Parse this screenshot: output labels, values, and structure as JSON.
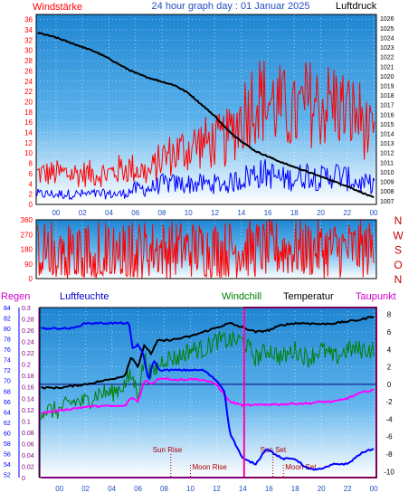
{
  "header": {
    "left_label": "Windstärke",
    "title": "24 hour graph day : 01 Januar 2025",
    "right_label": "Luftdruck"
  },
  "x_ticks": [
    "00",
    "02",
    "04",
    "06",
    "08",
    "10",
    "12",
    "14",
    "16",
    "18",
    "20",
    "22",
    "00"
  ],
  "wind_axis_ticks": [
    "0",
    "2",
    "4",
    "6",
    "8",
    "10",
    "12",
    "14",
    "16",
    "18",
    "20",
    "22",
    "24",
    "26",
    "28",
    "30",
    "32",
    "34",
    "36"
  ],
  "pressure_axis_ticks": [
    "1007",
    "1008",
    "1009",
    "1010",
    "1011",
    "1012",
    "1013",
    "1014",
    "1015",
    "1016",
    "1017",
    "1018",
    "1019",
    "1020",
    "1021",
    "1022",
    "1023",
    "1024",
    "1025",
    "1026"
  ],
  "direction_axis_ticks": [
    "0",
    "90",
    "180",
    "270",
    "360"
  ],
  "direction_labels": [
    "N",
    "W",
    "S",
    "O",
    "N"
  ],
  "bottom_headers": {
    "regen": "Regen",
    "luftfeuchte": "Luftfeuchte",
    "windchill": "Windchill",
    "temperatur": "Temperatur",
    "taupunkt": "Taupunkt"
  },
  "rain_axis_ticks": [
    "0",
    "0.02",
    "0.04",
    "0.06",
    "0.08",
    "0.1",
    "0.12",
    "0.14",
    "0.16",
    "0.18",
    "0.2",
    "0.22",
    "0.24",
    "0.26",
    "0.28",
    "0.3"
  ],
  "humidity_axis_ticks": [
    "52",
    "54",
    "56",
    "58",
    "60",
    "62",
    "64",
    "66",
    "68",
    "70",
    "72",
    "74",
    "76",
    "78",
    "80",
    "82",
    "84"
  ],
  "temperature_axis_ticks": [
    "-10",
    "-8",
    "-6",
    "-4",
    "-2",
    "0",
    "2",
    "4",
    "6",
    "8"
  ],
  "astro": {
    "sun_rise": "Sun Rise",
    "sun_set": "Sun Set",
    "moon_rise": "Moon Rise",
    "moon_set": "Moon Set"
  },
  "colors": {
    "wind_gust": "#ff0000",
    "wind_avg": "#0000ff",
    "pressure": "#000000",
    "direction": "#ff0000",
    "humidity": "#0000ff",
    "temperature": "#000000",
    "windchill": "#008000",
    "dewpoint": "#ff00ff",
    "rain": "#ff00ff",
    "astro": "#aa0000",
    "axis_wind": "#ff0000",
    "axis_pressure": "#000000",
    "axis_direction": "#ff0000",
    "axis_rain": "#800080",
    "axis_humidity": "#0000ff",
    "axis_temp": "#000000"
  },
  "chart_data": [
    {
      "type": "line",
      "x_unit": "hour",
      "xlim": [
        -1.5,
        24.2
      ],
      "y_left": {
        "ylim": [
          0,
          37
        ]
      },
      "y_right": {
        "ylim": [
          1006.6,
          1026.4
        ]
      },
      "series": [
        {
          "axis": "left",
          "x": [
            0,
            1,
            2,
            3,
            4,
            5,
            6,
            7,
            8,
            9,
            10,
            11,
            12,
            13,
            14,
            15,
            16,
            17,
            18,
            19,
            20,
            21,
            22,
            23,
            24
          ],
          "values": [
            6,
            6,
            6,
            6,
            6,
            7,
            7,
            6,
            9,
            10,
            11,
            12,
            12,
            13,
            17,
            21,
            20,
            19,
            17,
            20,
            19,
            20,
            18,
            17,
            12
          ]
        },
        {
          "axis": "left",
          "x": [
            0,
            1,
            2,
            3,
            4,
            5,
            6,
            7,
            8,
            9,
            10,
            11,
            12,
            13,
            14,
            15,
            16,
            17,
            18,
            19,
            20,
            21,
            22,
            23,
            24
          ],
          "values": [
            2,
            2,
            2,
            2,
            2,
            2,
            3,
            3,
            4,
            4,
            4,
            4,
            4,
            4,
            5,
            6,
            6,
            5,
            5,
            6,
            5,
            6,
            5,
            4,
            4
          ]
        },
        {
          "axis": "right",
          "x": [
            -1.4,
            0,
            1,
            2,
            3,
            4,
            5,
            6,
            7,
            8,
            9,
            10,
            11,
            12,
            13,
            14,
            15,
            16,
            17,
            18,
            19,
            20,
            21,
            22,
            23,
            24
          ],
          "values": [
            1024.5,
            1024.0,
            1023.5,
            1023.0,
            1022.5,
            1021.8,
            1021.0,
            1020.3,
            1019.8,
            1019.4,
            1019.0,
            1018.2,
            1017.0,
            1015.8,
            1014.3,
            1013.2,
            1012.2,
            1011.6,
            1011.0,
            1010.5,
            1010.0,
            1009.5,
            1009.0,
            1008.5,
            1007.9,
            1007.3
          ]
        }
      ]
    },
    {
      "type": "line",
      "x_unit": "hour",
      "xlim": [
        -1.5,
        24.2
      ],
      "ylim": [
        0,
        360
      ],
      "series": [
        {
          "x": [
            0,
            1,
            2,
            3,
            4,
            5,
            6,
            7,
            8,
            9,
            10,
            11,
            12,
            13,
            14,
            15,
            16,
            17,
            18,
            19,
            20,
            21,
            22,
            23,
            24
          ],
          "values": [
            60,
            300,
            120,
            310,
            90,
            280,
            150,
            320,
            200,
            340,
            180,
            300,
            220,
            330,
            190,
            310,
            210,
            340,
            230,
            300,
            200,
            320,
            250,
            330,
            280
          ]
        }
      ]
    },
    {
      "type": "line",
      "x_unit": "hour",
      "xlim": [
        -1.5,
        24.2
      ],
      "y_humidity": {
        "ylim": [
          51.4,
          84
        ]
      },
      "y_temperature": {
        "ylim": [
          -10.7,
          8.8
        ]
      },
      "y_rain": {
        "ylim": [
          0,
          0.3
        ]
      },
      "astro_hours": {
        "sun_rise": 8.5,
        "sun_set": 16.3,
        "moon_rise": 10.0,
        "moon_set": 17.1
      },
      "highlight_range": [
        14.1,
        24.2
      ],
      "series": [
        {
          "axis": "humidity",
          "x": [
            -1.4,
            0,
            1,
            2,
            3,
            4,
            5,
            5.3,
            5.6,
            6,
            6.4,
            6.8,
            7.2,
            7.6,
            8,
            9,
            10,
            11,
            12,
            12.6,
            13,
            14,
            15,
            15.8,
            16.4,
            17,
            18,
            18.5,
            19,
            20,
            21,
            22,
            23,
            24
          ],
          "values": [
            80,
            80,
            80,
            81,
            81,
            81,
            81,
            81,
            76,
            77,
            75,
            70,
            74,
            72,
            72,
            72,
            72,
            72,
            70,
            68,
            60,
            55,
            54,
            57,
            56,
            55,
            55,
            54,
            53,
            53,
            54,
            54,
            56,
            57
          ]
        },
        {
          "axis": "temperature",
          "x": [
            -1.4,
            0,
            1,
            2,
            3,
            4,
            5,
            5.5,
            6,
            6.5,
            7,
            7.5,
            8,
            9,
            10,
            11,
            12,
            13,
            14,
            15,
            16,
            17,
            18,
            19,
            20,
            21,
            22,
            23,
            24
          ],
          "values": [
            -0.4,
            -0.4,
            -0.2,
            0,
            0.3,
            0.6,
            1.0,
            3.2,
            2.0,
            4.5,
            3.5,
            5.0,
            5.0,
            5.2,
            5.5,
            6.0,
            6.5,
            7.0,
            6.5,
            6.0,
            6.2,
            6.8,
            7.0,
            7.0,
            6.9,
            7.0,
            7.2,
            7.4,
            7.8
          ]
        },
        {
          "axis": "temperature",
          "x": [
            -1.4,
            0,
            1,
            2,
            3,
            4,
            5,
            5.5,
            6,
            6.5,
            7,
            7.5,
            8,
            9,
            10,
            11,
            12,
            13,
            14,
            15,
            16,
            17,
            18,
            19,
            20,
            21,
            22,
            23,
            24
          ],
          "values": [
            -3,
            -3,
            -2,
            -2,
            -1,
            -1,
            0,
            1,
            -1,
            3,
            1,
            2,
            3,
            3,
            4,
            4,
            5,
            5,
            5,
            3,
            4,
            3,
            4,
            3,
            4,
            3,
            4,
            4,
            4
          ]
        },
        {
          "axis": "temperature",
          "x": [
            -1.4,
            0,
            1,
            2,
            3,
            4,
            5,
            5.5,
            6,
            6.5,
            7,
            7.5,
            8,
            9,
            10,
            11,
            12,
            12.5,
            13,
            14,
            15,
            16,
            17,
            18,
            19,
            20,
            21,
            22,
            23,
            24
          ],
          "values": [
            -3.3,
            -3.0,
            -2.8,
            -2.6,
            -2.5,
            -2.5,
            -2.5,
            -1.5,
            -2.0,
            0.5,
            0.0,
            0.6,
            0.7,
            0.5,
            0.6,
            0.5,
            0.0,
            -1.0,
            -2.0,
            -2.4,
            -2.4,
            -2.3,
            -2.3,
            -2.2,
            -2.2,
            -2.0,
            -2.0,
            -1.6,
            -1.0,
            -0.6
          ]
        },
        {
          "axis": "rain",
          "x": [
            -1.4,
            24.2
          ],
          "values": [
            0,
            0
          ]
        }
      ]
    }
  ]
}
